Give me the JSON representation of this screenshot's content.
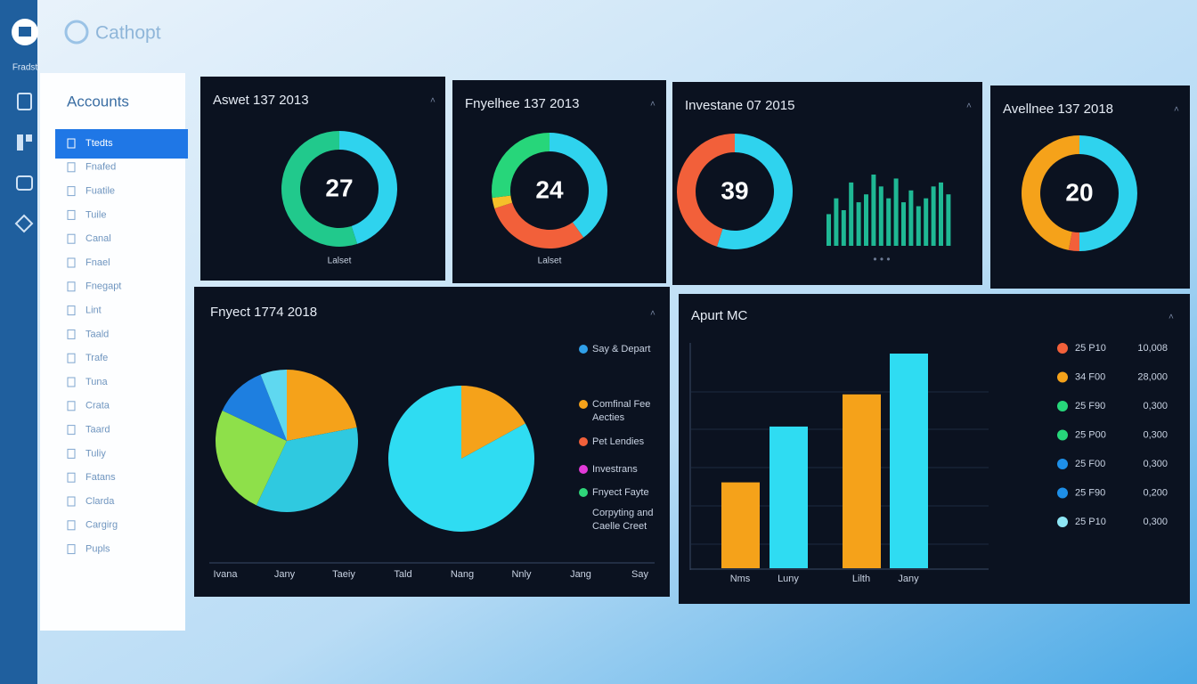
{
  "app": {
    "logo": "Cathopt",
    "sidebar_label": "Fradst"
  },
  "nav": {
    "title": "Accounts",
    "items": [
      "Ttedts",
      "Fnafed",
      "Fuatile",
      "Tuile",
      "Canal",
      "Fnael",
      "Fnegapt",
      "Lint",
      "Taald",
      "Trafe",
      "Tuna",
      "Crata",
      "Taard",
      "Tuliy",
      "Fatans",
      "Clarda",
      "Cargirg",
      "Pupls"
    ]
  },
  "cards": [
    {
      "title": "Aswet 137 2013",
      "center": "27",
      "label": "Lalset",
      "segments": [
        {
          "color": "#2fd3ee",
          "value": 45
        },
        {
          "color": "#21c98c",
          "value": 55
        }
      ]
    },
    {
      "title": "Fnyelhee 137 2013",
      "center": "24",
      "label": "Lalset",
      "segments": [
        {
          "color": "#2fd3ee",
          "value": 40
        },
        {
          "color": "#f2603a",
          "value": 30
        },
        {
          "color": "#f5c02a",
          "value": 3
        },
        {
          "color": "#27d67a",
          "value": 27
        }
      ]
    },
    {
      "title": "Investane 07 2015",
      "center": "39",
      "segments": [
        {
          "color": "#2fd3ee",
          "value": 55
        },
        {
          "color": "#f2603a",
          "value": 45
        }
      ],
      "bars": [
        40,
        60,
        45,
        80,
        55,
        65,
        90,
        75,
        60,
        85,
        55,
        70,
        50,
        60,
        75,
        80,
        65
      ],
      "bars_color": "#1fb894"
    },
    {
      "title": "Avellnee 137 2018",
      "center": "20",
      "segments": [
        {
          "color": "#2fd3ee",
          "value": 50
        },
        {
          "color": "#f2603a",
          "value": 3
        },
        {
          "color": "#f5a21a",
          "value": 47
        }
      ]
    }
  ],
  "pie_panel": {
    "title": "Fnyect 1774 2018",
    "pies": [
      [
        {
          "color": "#f5a21a",
          "value": 22
        },
        {
          "color": "#2fc9e0",
          "value": 35
        },
        {
          "color": "#8ee04a",
          "value": 25
        },
        {
          "color": "#1e7fe0",
          "value": 12
        },
        {
          "color": "#5fd8f0",
          "value": 6
        }
      ],
      [
        {
          "color": "#f5a21a",
          "value": 17
        },
        {
          "color": "#2fdcf2",
          "value": 83
        }
      ]
    ],
    "legend": [
      {
        "color": "#2f9fe8",
        "label": [
          "Say & Depart"
        ]
      },
      {
        "color": "#f5a21a",
        "label": [
          "Comfinal Fee",
          "Aecties"
        ]
      },
      {
        "color": "#f2603a",
        "label": [
          "Pet Lendies"
        ]
      },
      {
        "color": "#e23ad8",
        "label": [
          "Investrans"
        ]
      },
      {
        "color": "#2fd67a",
        "label": [
          "Fnyect Fayte"
        ]
      },
      {
        "label": [
          "Corpyting and",
          "Caelle Creet"
        ]
      }
    ],
    "x_labels": [
      "Ivana",
      "Jany",
      "Taeiy",
      "Tald",
      "Nang",
      "Nnly",
      "Jang",
      "Say"
    ]
  },
  "bar_panel": {
    "title": "Apurt MC",
    "categories": [
      "Nms",
      "Luny",
      "Lilth",
      "Jany"
    ],
    "values": [
      40,
      66,
      81,
      100
    ],
    "colors": [
      "#f5a21a",
      "#2fdcf2",
      "#f5a21a",
      "#2fdcf2"
    ],
    "ylim": [
      0,
      100
    ],
    "legend": [
      {
        "color": "#f2603a",
        "code": "25 P10",
        "value": "10,008"
      },
      {
        "color": "#f5a21a",
        "code": "34 F00",
        "value": "28,000"
      },
      {
        "color": "#27d67a",
        "code": "25 F90",
        "value": "0,300"
      },
      {
        "color": "#27d67a",
        "code": "25 P00",
        "value": "0,300"
      },
      {
        "color": "#1e8fe8",
        "code": "25 F00",
        "value": "0,300"
      },
      {
        "color": "#1e8fe8",
        "code": "25 F90",
        "value": "0,200"
      },
      {
        "color": "#8ee6f5",
        "code": "25 P10",
        "value": "0,300"
      }
    ]
  }
}
